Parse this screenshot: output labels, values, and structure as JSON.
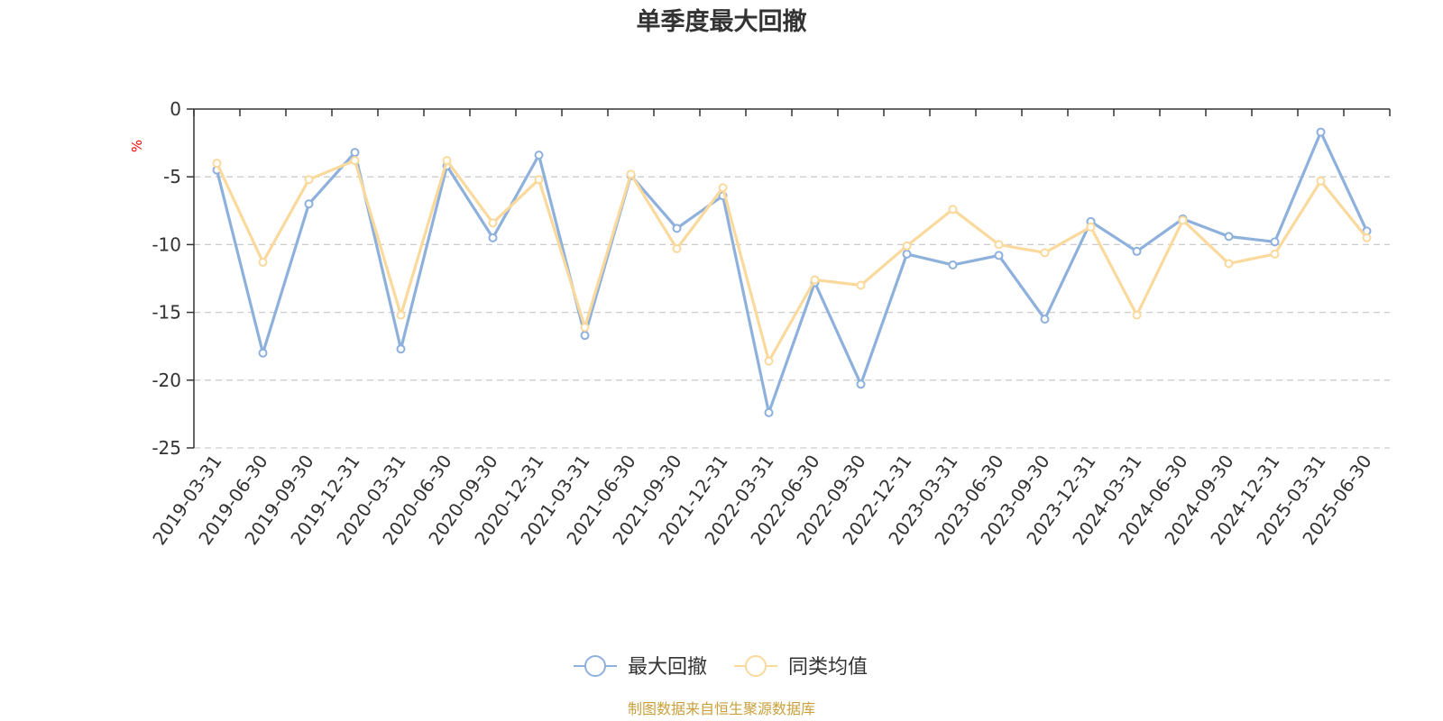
{
  "chart_data": {
    "type": "line",
    "title": "单季度最大回撤",
    "ylabel": "%",
    "xlabel": "",
    "ylim": [
      -25,
      0
    ],
    "yticks": [
      0,
      -5,
      -10,
      -15,
      -20,
      -25
    ],
    "grid": true,
    "legend_position": "bottom",
    "categories": [
      "2019-03-31",
      "2019-06-30",
      "2019-09-30",
      "2019-12-31",
      "2020-03-31",
      "2020-06-30",
      "2020-09-30",
      "2020-12-31",
      "2021-03-31",
      "2021-06-30",
      "2021-09-30",
      "2021-12-31",
      "2022-03-31",
      "2022-06-30",
      "2022-09-30",
      "2022-12-31",
      "2023-03-31",
      "2023-06-30",
      "2023-09-30",
      "2023-12-31",
      "2024-03-31",
      "2024-06-30",
      "2024-09-30",
      "2024-12-31",
      "2025-03-31",
      "2025-06-30"
    ],
    "series": [
      {
        "name": "最大回撤",
        "color": "#8eb0dc",
        "values": [
          -4.5,
          -18.0,
          -7.0,
          -3.2,
          -17.7,
          -4.2,
          -9.5,
          -3.4,
          -16.7,
          -4.9,
          -8.8,
          -6.4,
          -22.4,
          -12.8,
          -20.3,
          -10.7,
          -11.5,
          -10.8,
          -15.5,
          -8.3,
          -10.5,
          -8.1,
          -9.4,
          -9.8,
          -1.7,
          -9.0
        ]
      },
      {
        "name": "同类均值",
        "color": "#fad99d",
        "values": [
          -4.0,
          -11.3,
          -5.2,
          -3.8,
          -15.2,
          -3.8,
          -8.4,
          -5.2,
          -16.1,
          -4.8,
          -10.3,
          -5.8,
          -18.6,
          -12.6,
          -13.0,
          -10.1,
          -7.4,
          -10.0,
          -10.6,
          -8.7,
          -15.2,
          -8.2,
          -11.4,
          -10.7,
          -5.3,
          -9.5
        ]
      }
    ]
  },
  "footer": {
    "source": "制图数据来自恒生聚源数据库"
  },
  "colors": {
    "axis": "#333333",
    "grid": "#cccccc",
    "unit": "#ff0000",
    "source": "#c9a03c"
  }
}
